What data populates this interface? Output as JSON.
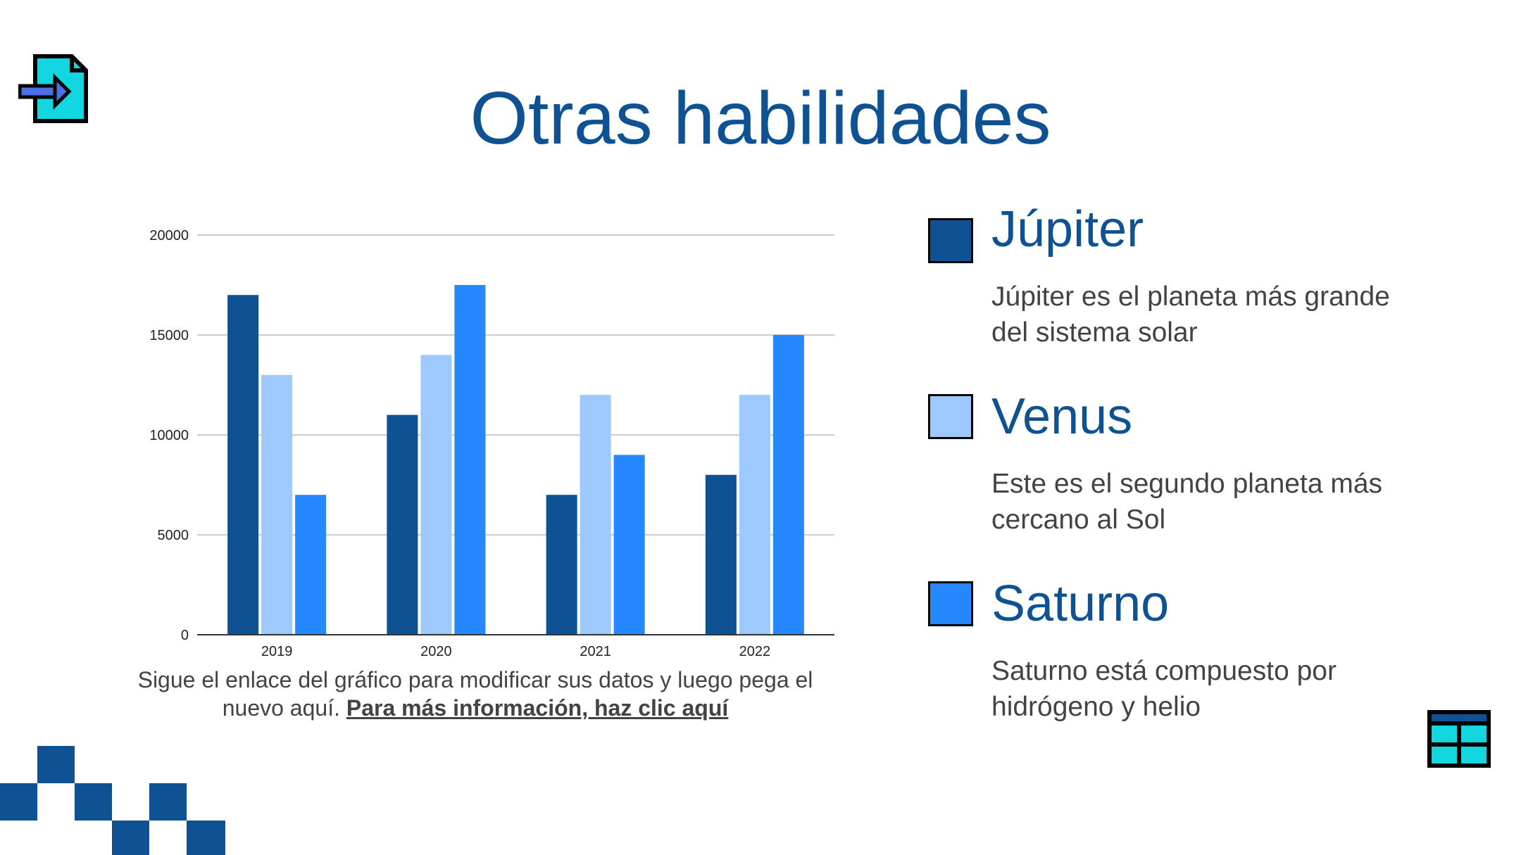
{
  "slide": {
    "title": "Otras habilidades"
  },
  "colors": {
    "title": "#0E5293",
    "dark": "#0E5293",
    "light": "#9EC9FF",
    "bright": "#2688FF",
    "accent_cyan": "#12D6E0",
    "text": "#434343"
  },
  "icons": {
    "top_left": "document-arrow-icon",
    "bottom_right": "table-icon"
  },
  "chart_data": {
    "type": "bar",
    "categories": [
      "2019",
      "2020",
      "2021",
      "2022"
    ],
    "series": [
      {
        "name": "Júpiter",
        "color": "#0E5293",
        "values": [
          17000,
          11000,
          7000,
          8000
        ]
      },
      {
        "name": "Venus",
        "color": "#9EC9FF",
        "values": [
          13000,
          14000,
          12000,
          12000
        ]
      },
      {
        "name": "Saturno",
        "color": "#2688FF",
        "values": [
          7000,
          17500,
          9000,
          15000
        ]
      }
    ],
    "ylim": [
      0,
      20000
    ],
    "yticks": [
      "0",
      "5000",
      "10000",
      "15000",
      "20000"
    ],
    "grid": true,
    "legend": "right"
  },
  "caption": {
    "text": "Sigue el enlace del gráfico para modificar sus datos y luego pega el nuevo aquí. ",
    "link": "Para más información, haz clic aquí"
  },
  "legend": [
    {
      "name": "Júpiter",
      "color": "#0E5293",
      "desc": "Júpiter es el planeta más grande del sistema solar"
    },
    {
      "name": "Venus",
      "color": "#9EC9FF",
      "desc": "Este es el segundo planeta más cercano al Sol"
    },
    {
      "name": "Saturno",
      "color": "#2688FF",
      "desc": "Saturno está compuesto por hidrógeno y helio"
    }
  ]
}
